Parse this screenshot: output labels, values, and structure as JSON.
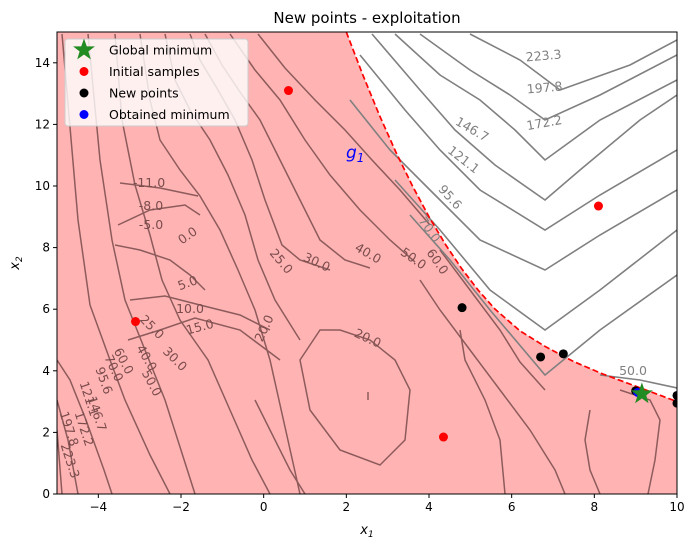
{
  "chart_data": {
    "type": "contour",
    "title": "New points - exploitation",
    "xlabel": "x",
    "xlabel_sub": "1",
    "ylabel": "x",
    "ylabel_sub": "2",
    "xlim": [
      -5,
      10
    ],
    "ylim": [
      0,
      15
    ],
    "xticks": [
      -4,
      -2,
      0,
      2,
      4,
      6,
      8,
      10
    ],
    "yticks": [
      0,
      2,
      4,
      6,
      8,
      10,
      12,
      14
    ],
    "constraint_label": "g",
    "constraint_label_sub": "1",
    "constraint_boundary": [
      [
        2.0,
        15.0
      ],
      [
        2.4,
        13.6
      ],
      [
        2.8,
        12.3
      ],
      [
        3.2,
        11.1
      ],
      [
        3.6,
        10.0
      ],
      [
        4.0,
        9.0
      ],
      [
        4.4,
        8.1
      ],
      [
        4.8,
        7.3
      ],
      [
        5.2,
        6.6
      ],
      [
        5.6,
        6.0
      ],
      [
        6.2,
        5.3
      ],
      [
        6.8,
        4.8
      ],
      [
        7.5,
        4.3
      ],
      [
        8.2,
        3.9
      ],
      [
        9.0,
        3.5
      ],
      [
        10.0,
        3.0
      ]
    ],
    "contour_levels": [
      "223.3",
      "197.8",
      "172.2",
      "146.7",
      "121.1",
      "95.6",
      "70.0",
      "60.0",
      "50.0",
      "40.0",
      "30.0",
      "25.0",
      "20.0",
      "15.0",
      "10.0",
      "5.0",
      "0.0",
      "-5.0",
      "-8.0",
      "-11.0",
      "50.0"
    ],
    "legend": {
      "position": "top-left",
      "entries": [
        "Global minimum",
        "Initial samples",
        "New points",
        "Obtained minimum"
      ]
    },
    "series": [
      {
        "name": "Initial samples",
        "color": "#ff0000",
        "x": [
          0.6,
          -3.1,
          4.35,
          8.1
        ],
        "y": [
          13.1,
          5.6,
          1.85,
          9.35
        ]
      },
      {
        "name": "New points",
        "color": "#000000",
        "x": [
          4.8,
          6.7,
          7.25,
          9.0,
          10.0,
          10.0
        ],
        "y": [
          6.05,
          4.45,
          4.55,
          3.35,
          3.2,
          2.95
        ]
      },
      {
        "name": "Obtained minimum",
        "color": "#0000ff",
        "x": [
          9.05
        ],
        "y": [
          3.3
        ]
      },
      {
        "name": "Global minimum",
        "color": "#228b22",
        "x": [
          9.15
        ],
        "y": [
          3.25
        ]
      }
    ],
    "colors": {
      "feasible_fill": "#ffb3b3",
      "boundary": "#ff0000",
      "contour_gray": "#808080",
      "contour_dark": "#7a4c4c"
    }
  }
}
